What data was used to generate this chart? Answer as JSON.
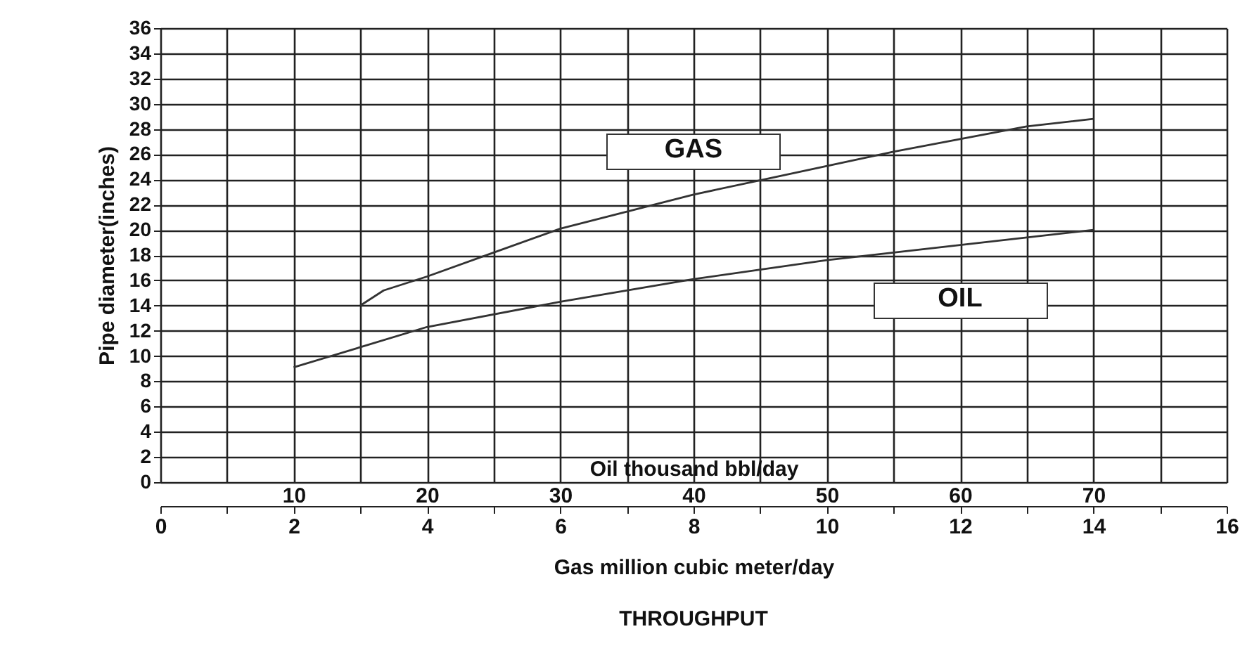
{
  "chart_data": {
    "type": "line",
    "title": "THROUGHPUT",
    "xlabel": "Gas million cubic meter/day",
    "x2label": "Oil thousand bbl/day",
    "ylabel": "Pipe diameter(inches)",
    "xlim": [
      0,
      16
    ],
    "xticks": [
      0,
      {
        "value": 1,
        "label": null
      },
      2,
      {
        "value": 3,
        "label": null
      },
      4,
      {
        "value": 5,
        "label": null
      },
      6,
      {
        "value": 7,
        "label": null
      },
      8,
      {
        "value": 9,
        "label": null
      },
      10,
      {
        "value": 11,
        "label": null
      },
      12,
      {
        "value": 13,
        "label": null
      },
      14,
      {
        "value": 15,
        "label": null
      },
      16
    ],
    "x2lim": [
      0,
      80
    ],
    "x2ticks": [
      10,
      20,
      30,
      40,
      50,
      60,
      70
    ],
    "ylim": [
      0,
      36
    ],
    "yticks": [
      0,
      2,
      4,
      6,
      8,
      10,
      12,
      14,
      16,
      18,
      20,
      22,
      24,
      26,
      28,
      30,
      32,
      34,
      36
    ],
    "grid": true,
    "series": [
      {
        "name": "GAS",
        "color": "#333333",
        "x": [
          3,
          3.35,
          4,
          5,
          6,
          8,
          11,
          13,
          14
        ],
        "values": [
          14.0,
          15.2,
          16.3,
          18.2,
          20.1,
          22.8,
          26.2,
          28.2,
          28.8
        ]
      },
      {
        "name": "OIL",
        "color": "#333333",
        "axis": "x2",
        "x": [
          10,
          20,
          30,
          40,
          50,
          55,
          60,
          70
        ],
        "values": [
          9.1,
          12.3,
          14.3,
          16.1,
          17.6,
          18.2,
          18.8,
          20.0
        ]
      }
    ]
  }
}
